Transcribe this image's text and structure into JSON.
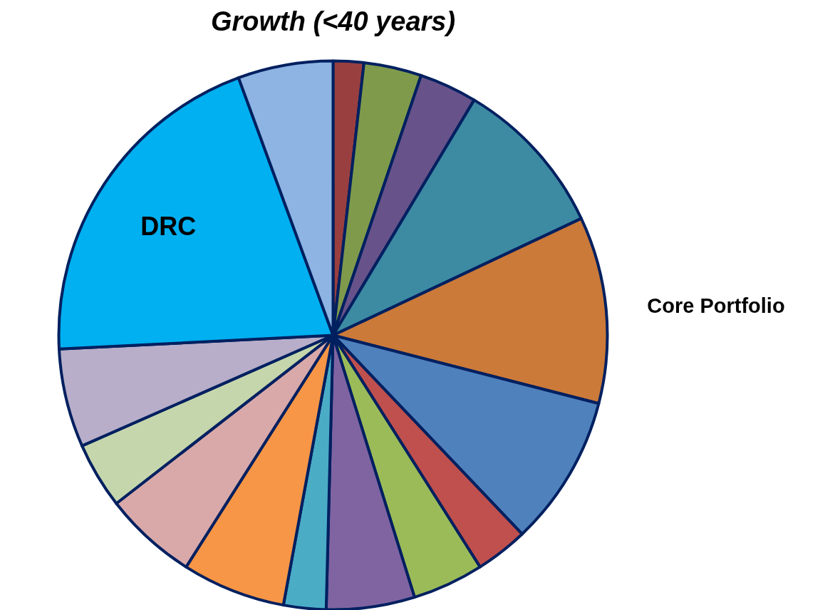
{
  "chart_data": {
    "type": "pie",
    "title": "Growth (<40 years)",
    "categories": [
      null,
      null,
      null,
      null,
      "Core Portfolio",
      null,
      null,
      null,
      null,
      null,
      null,
      null,
      null,
      null,
      "DRC",
      null
    ],
    "values": [
      1.8,
      3.4,
      3.4,
      9.4,
      11.0,
      8.9,
      3.1,
      4.2,
      5.2,
      2.5,
      6.1,
      5.5,
      3.9,
      5.8,
      20.2,
      5.6
    ],
    "colors": [
      "#9a3f3f",
      "#7f9a4b",
      "#67528a",
      "#3d8ba3",
      "#cb7a39",
      "#4f81bd",
      "#c0504d",
      "#9bbb59",
      "#8064a2",
      "#4bacc6",
      "#f79646",
      "#d9a9a9",
      "#c6d6ac",
      "#b8aec9",
      "#00b0f0",
      "#8eb4e3"
    ]
  }
}
